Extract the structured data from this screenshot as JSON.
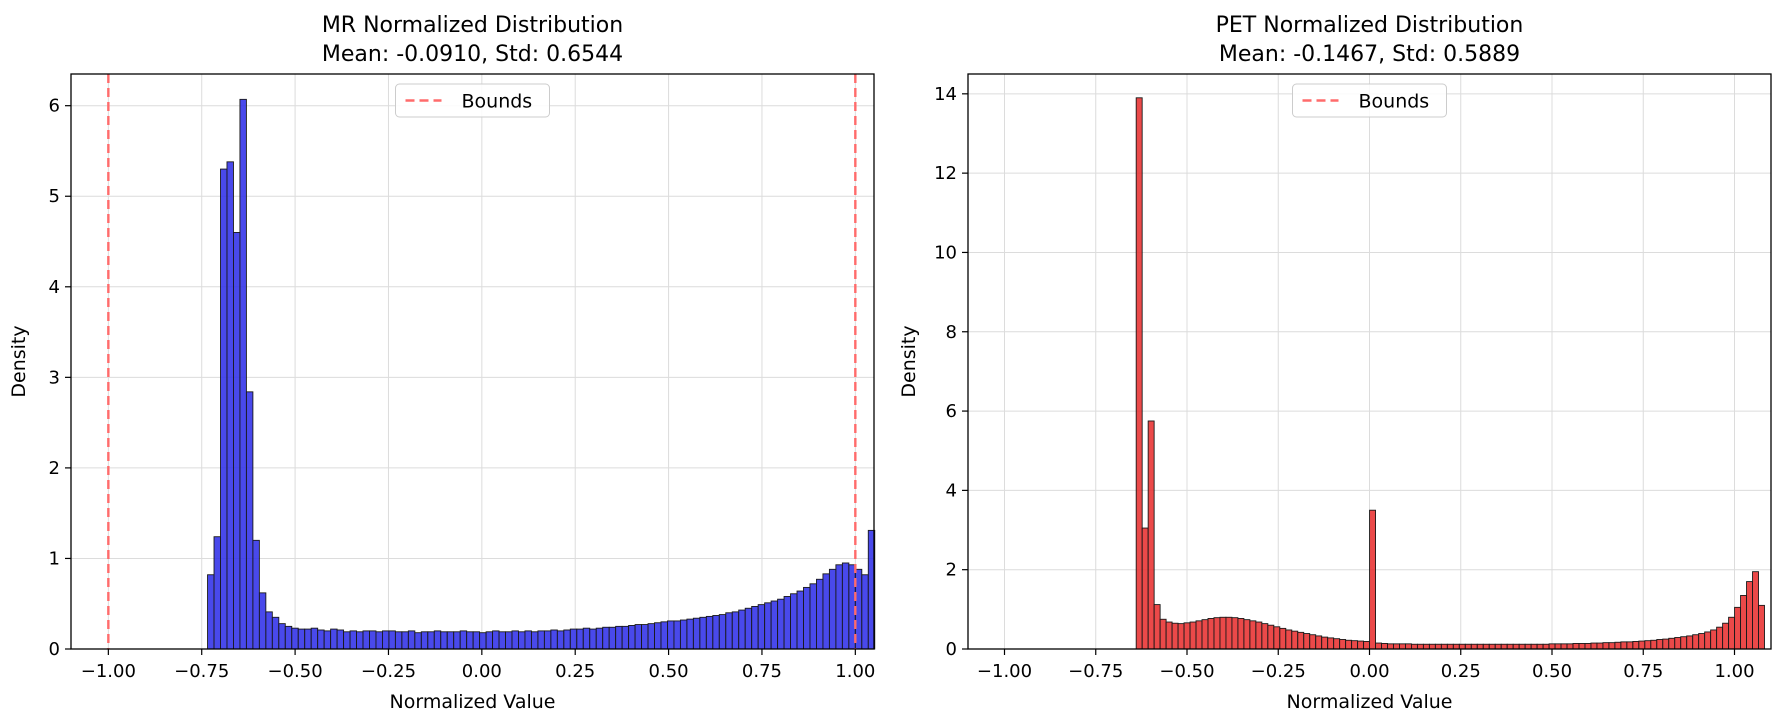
{
  "chart_data": [
    {
      "type": "histogram",
      "title": "MR Normalized Distribution",
      "subtitle": "Mean: -0.0910, Std: 0.6544",
      "xlabel": "Normalized Value",
      "ylabel": "Density",
      "xlim": [
        -1.1,
        1.05
      ],
      "ylim": [
        0,
        6.35
      ],
      "xticks": [
        -1.0,
        -0.75,
        -0.5,
        -0.25,
        0.0,
        0.25,
        0.5,
        0.75,
        1.0
      ],
      "xtick_labels": [
        "−1.00",
        "−0.75",
        "−0.50",
        "−0.25",
        "0.00",
        "0.25",
        "0.50",
        "0.75",
        "1.00"
      ],
      "yticks": [
        0,
        1,
        2,
        3,
        4,
        5,
        6
      ],
      "ytick_labels": [
        "0",
        "1",
        "2",
        "3",
        "4",
        "5",
        "6"
      ],
      "bar_color": "#3030e8",
      "bin_start": -0.7344,
      "bin_width": 0.017344,
      "values": [
        0.82,
        1.24,
        5.3,
        5.38,
        4.6,
        6.07,
        2.84,
        1.2,
        0.62,
        0.41,
        0.35,
        0.28,
        0.25,
        0.23,
        0.22,
        0.22,
        0.23,
        0.21,
        0.2,
        0.22,
        0.21,
        0.19,
        0.2,
        0.19,
        0.2,
        0.2,
        0.19,
        0.2,
        0.2,
        0.19,
        0.19,
        0.2,
        0.18,
        0.19,
        0.19,
        0.2,
        0.19,
        0.19,
        0.19,
        0.2,
        0.19,
        0.19,
        0.18,
        0.19,
        0.2,
        0.19,
        0.19,
        0.2,
        0.19,
        0.2,
        0.19,
        0.2,
        0.2,
        0.21,
        0.2,
        0.21,
        0.22,
        0.22,
        0.23,
        0.22,
        0.23,
        0.24,
        0.24,
        0.25,
        0.25,
        0.26,
        0.27,
        0.27,
        0.28,
        0.29,
        0.3,
        0.31,
        0.31,
        0.32,
        0.33,
        0.34,
        0.35,
        0.36,
        0.37,
        0.38,
        0.4,
        0.41,
        0.43,
        0.45,
        0.47,
        0.49,
        0.51,
        0.53,
        0.55,
        0.58,
        0.61,
        0.64,
        0.68,
        0.72,
        0.77,
        0.83,
        0.88,
        0.93,
        0.95,
        0.93,
        0.88,
        0.82,
        1.31
      ],
      "bounds": [
        -1.0,
        1.0
      ],
      "bounds_color": "#ff6b6b",
      "legend": {
        "label": "Bounds",
        "position": "upper center"
      },
      "grid": true
    },
    {
      "type": "histogram",
      "title": "PET Normalized Distribution",
      "subtitle": "Mean: -0.1467, Std: 0.5889",
      "xlabel": "Normalized Value",
      "ylabel": "Density",
      "xlim": [
        -1.1,
        1.1
      ],
      "ylim": [
        0,
        14.5
      ],
      "xticks": [
        -1.0,
        -0.75,
        -0.5,
        -0.25,
        0.0,
        0.25,
        0.5,
        0.75,
        1.0
      ],
      "xtick_labels": [
        "−1.00",
        "−0.75",
        "−0.50",
        "−0.25",
        "0.00",
        "0.25",
        "0.50",
        "0.75",
        "1.00"
      ],
      "yticks": [
        0,
        2,
        4,
        6,
        8,
        10,
        12,
        14
      ],
      "ytick_labels": [
        "0",
        "2",
        "4",
        "6",
        "8",
        "10",
        "12",
        "14"
      ],
      "bar_color": "#e83030",
      "bin_start": -0.6392,
      "bin_width": 0.016394,
      "values": [
        13.9,
        3.05,
        5.75,
        1.12,
        0.75,
        0.68,
        0.65,
        0.64,
        0.66,
        0.68,
        0.71,
        0.74,
        0.77,
        0.79,
        0.8,
        0.8,
        0.79,
        0.77,
        0.74,
        0.71,
        0.68,
        0.64,
        0.6,
        0.56,
        0.52,
        0.48,
        0.45,
        0.42,
        0.39,
        0.36,
        0.33,
        0.3,
        0.28,
        0.26,
        0.24,
        0.22,
        0.21,
        0.2,
        0.19,
        3.5,
        0.15,
        0.14,
        0.13,
        0.13,
        0.13,
        0.13,
        0.12,
        0.12,
        0.12,
        0.12,
        0.12,
        0.12,
        0.12,
        0.12,
        0.12,
        0.12,
        0.12,
        0.12,
        0.12,
        0.12,
        0.12,
        0.12,
        0.12,
        0.12,
        0.12,
        0.12,
        0.12,
        0.12,
        0.12,
        0.13,
        0.13,
        0.13,
        0.13,
        0.14,
        0.14,
        0.14,
        0.15,
        0.15,
        0.16,
        0.16,
        0.17,
        0.18,
        0.18,
        0.19,
        0.2,
        0.21,
        0.22,
        0.24,
        0.25,
        0.27,
        0.29,
        0.31,
        0.33,
        0.36,
        0.39,
        0.43,
        0.48,
        0.55,
        0.65,
        0.8,
        1.05,
        1.35,
        1.7,
        1.95,
        1.1
      ]
    }
  ]
}
